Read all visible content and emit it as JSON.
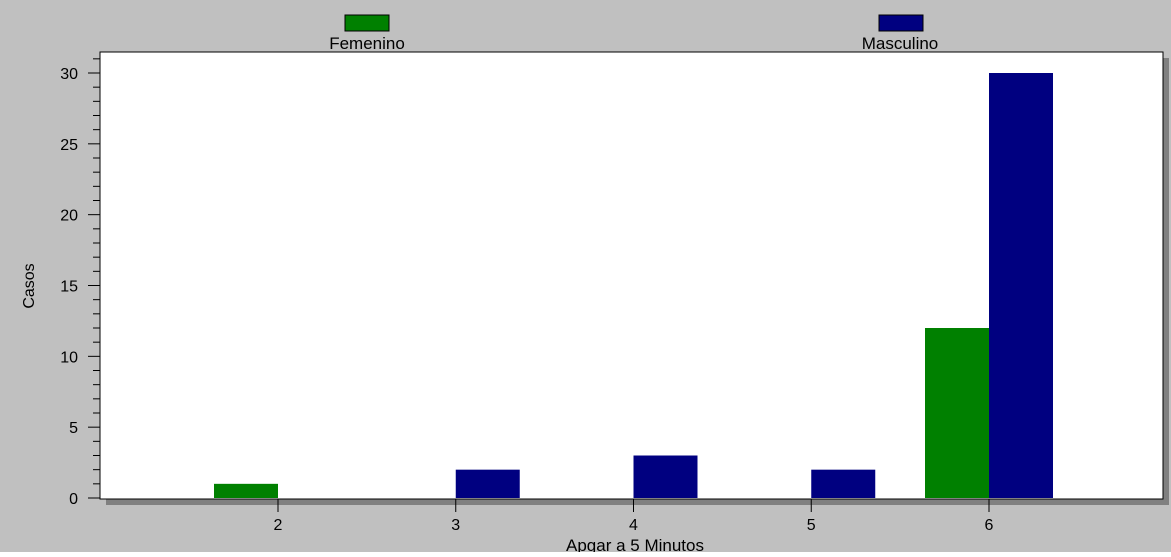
{
  "colors": {
    "background": "#c0c0c0",
    "plot_area": "#ffffff",
    "shadow": "#808080",
    "femenino": "#008000",
    "masculino": "#000080"
  },
  "chart_data": {
    "type": "bar",
    "xlabel": "Apgar a 5 Minutos",
    "ylabel": "Casos",
    "categories": [
      "2",
      "3",
      "4",
      "5",
      "6"
    ],
    "series": [
      {
        "name": "Femenino",
        "values": [
          1,
          0,
          0,
          0,
          12
        ]
      },
      {
        "name": "Masculino",
        "values": [
          0,
          2,
          3,
          2,
          30
        ]
      }
    ],
    "ylim": [
      0,
      31.5
    ],
    "yticks": [
      0,
      5,
      10,
      15,
      20,
      25,
      30
    ],
    "grid": false,
    "legend": "top"
  }
}
